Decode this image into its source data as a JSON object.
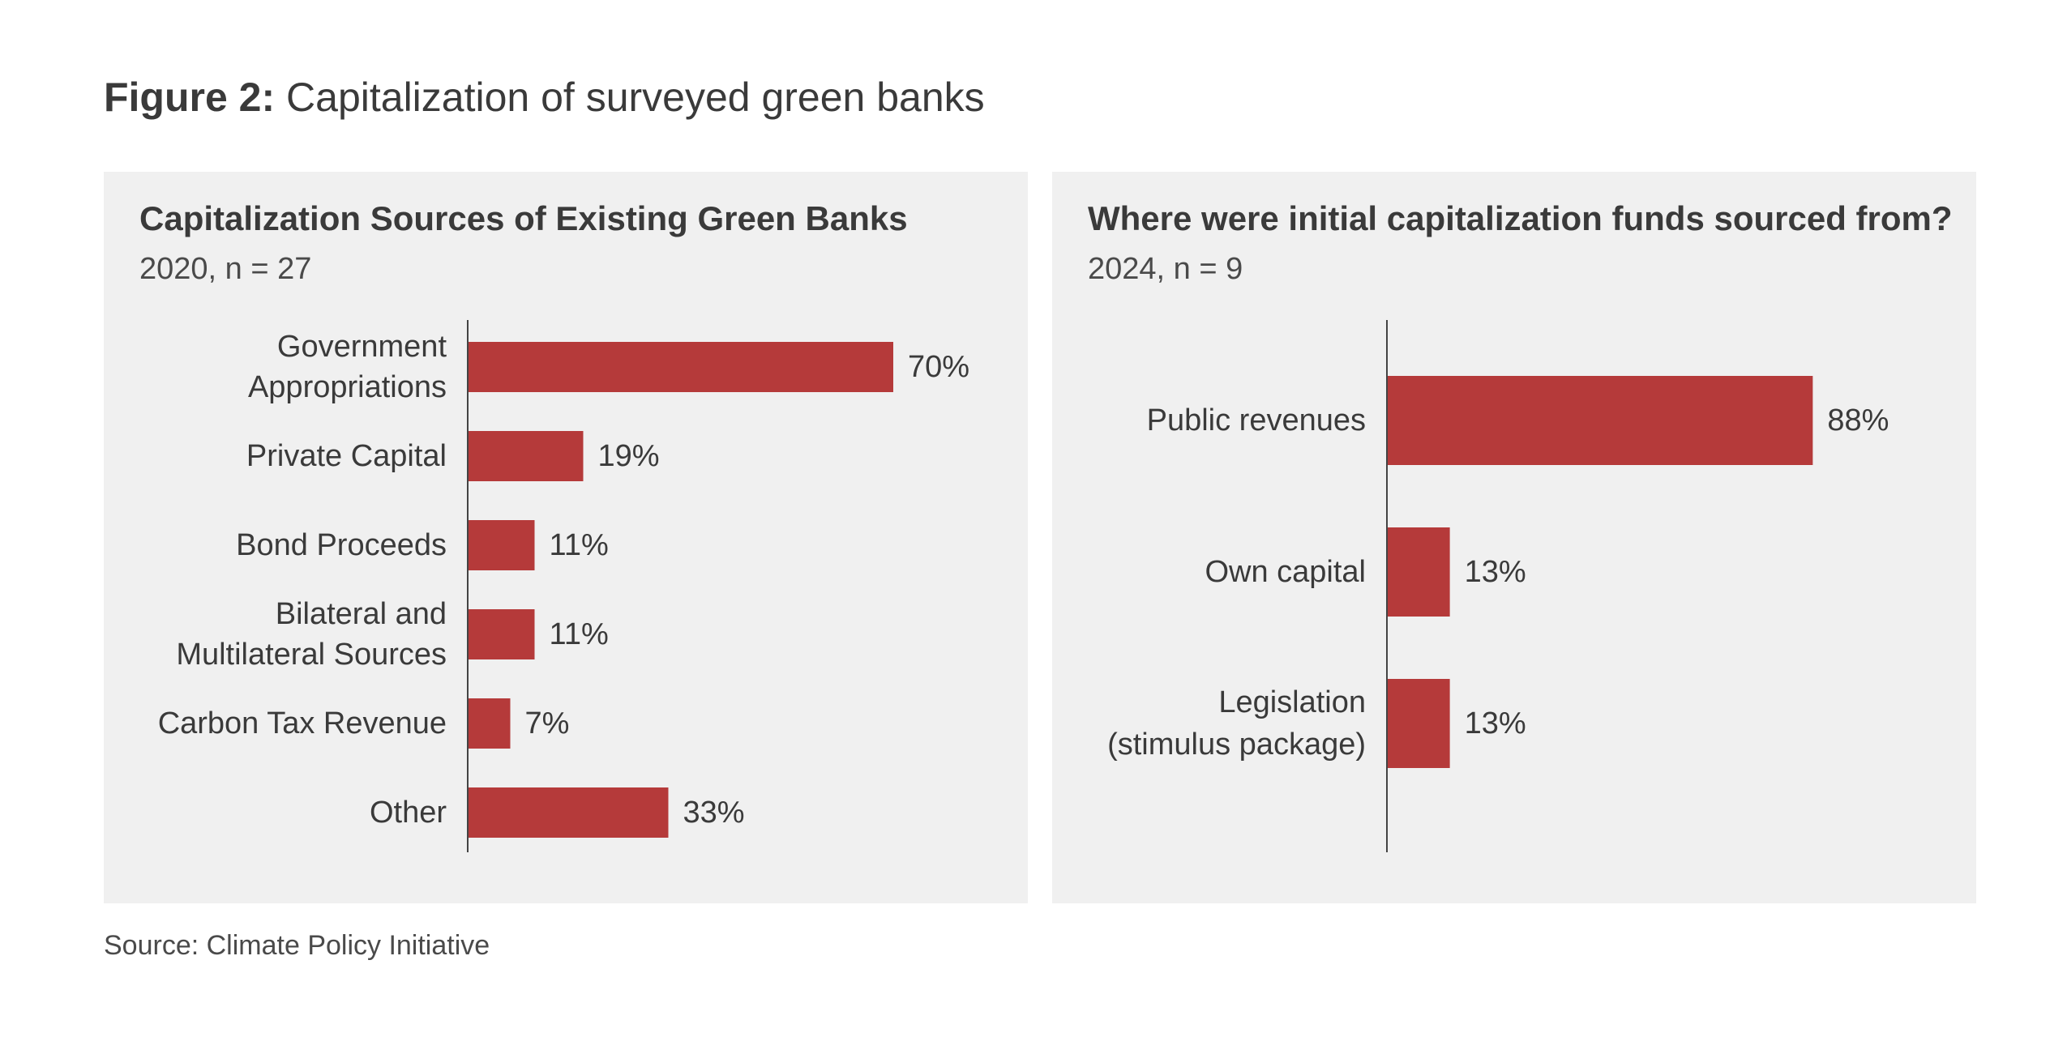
{
  "figure": {
    "label": "Figure 2:",
    "title": "Capitalization of surveyed green banks"
  },
  "source": "Source: Climate Policy Initiative",
  "colors": {
    "bar": "#b53a3a",
    "panel_background": "#f0f0f0",
    "text": "#3a3a3a"
  },
  "chart_data": [
    {
      "type": "bar",
      "orientation": "horizontal",
      "title": "Capitalization Sources of Existing Green Banks",
      "subtitle": "2020, n = 27",
      "categories": [
        [
          "Government",
          "Appropriations"
        ],
        [
          "Private Capital"
        ],
        [
          "Bond Proceeds"
        ],
        [
          "Bilateral and",
          "Multilateral Sources"
        ],
        [
          "Carbon Tax Revenue"
        ],
        [
          "Other"
        ]
      ],
      "values": [
        70,
        19,
        11,
        11,
        7,
        33
      ],
      "value_labels": [
        "70%",
        "19%",
        "11%",
        "11%",
        "7%",
        "33%"
      ],
      "unit": "%",
      "xlim": [
        0,
        100
      ],
      "grid": false,
      "legend": "none"
    },
    {
      "type": "bar",
      "orientation": "horizontal",
      "title": "Where were initial capitalization funds sourced from?",
      "subtitle": "2024, n = 9",
      "categories": [
        [
          "Public revenues"
        ],
        [
          "Own capital"
        ],
        [
          "Legislation",
          "(stimulus package)"
        ]
      ],
      "values": [
        88,
        13,
        13
      ],
      "value_labels": [
        "88%",
        "13%",
        "13%"
      ],
      "unit": "%",
      "xlim": [
        0,
        100
      ],
      "grid": false,
      "legend": "none"
    }
  ]
}
